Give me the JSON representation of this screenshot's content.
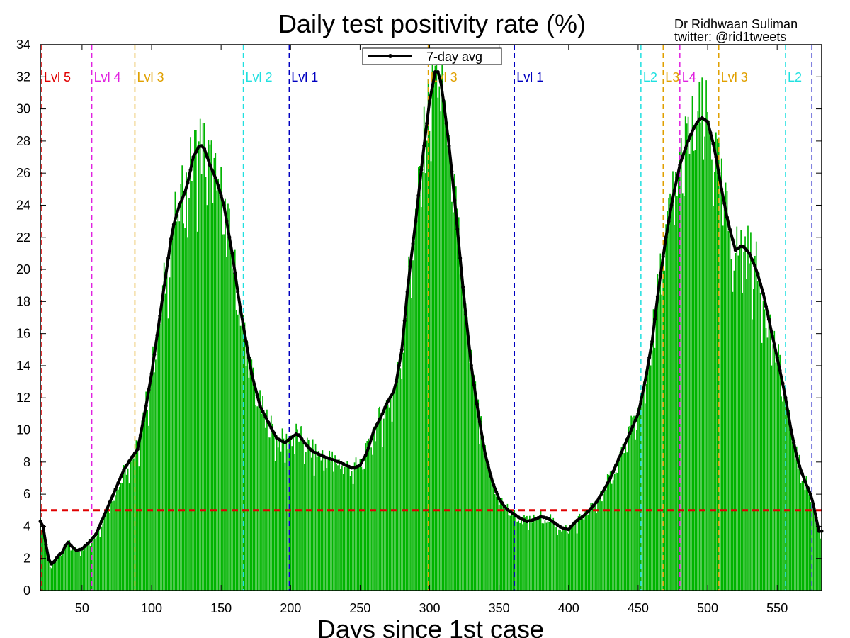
{
  "chart_data": {
    "type": "bar",
    "title": "Daily test positivity rate (%)",
    "credit": [
      "Dr Ridhwaan Suliman",
      "twitter: @rid1tweets"
    ],
    "xlabel": "Days since 1st case",
    "ylabel": "",
    "xlim": [
      20,
      582
    ],
    "ylim": [
      0,
      34
    ],
    "xticks": [
      50,
      100,
      150,
      200,
      250,
      300,
      350,
      400,
      450,
      500,
      550
    ],
    "yticks": [
      0,
      2,
      4,
      6,
      8,
      10,
      12,
      14,
      16,
      18,
      20,
      22,
      24,
      26,
      28,
      30,
      32,
      34
    ],
    "colors": {
      "bars": "#00b400",
      "bar_edge": "#228b22",
      "avg": "#000000",
      "threshold": "#e00000"
    },
    "bar_noise": 0.09,
    "threshold": {
      "y": 5
    },
    "legend": {
      "label": "7-day avg",
      "placement": "top-center"
    },
    "series": [
      {
        "name": "7-day avg",
        "x": [
          20,
          22,
          25,
          27,
          30,
          33,
          36,
          38,
          40,
          43,
          46,
          50,
          55,
          60,
          65,
          70,
          75,
          80,
          85,
          90,
          95,
          100,
          105,
          110,
          115,
          120,
          125,
          130,
          135,
          138,
          142,
          147,
          152,
          158,
          163,
          167,
          172,
          178,
          185,
          190,
          196,
          200,
          205,
          210,
          215,
          225,
          235,
          245,
          250,
          255,
          260,
          265,
          270,
          275,
          280,
          285,
          290,
          295,
          300,
          304,
          307,
          310,
          315,
          320,
          325,
          330,
          335,
          340,
          345,
          350,
          355,
          360,
          365,
          370,
          375,
          380,
          385,
          390,
          395,
          400,
          405,
          410,
          415,
          420,
          425,
          430,
          435,
          440,
          445,
          450,
          455,
          460,
          465,
          470,
          475,
          480,
          485,
          490,
          495,
          500,
          505,
          510,
          515,
          520,
          525,
          530,
          535,
          540,
          545,
          550,
          555,
          560,
          565,
          570,
          575,
          580
        ],
        "values": [
          4.3,
          4.0,
          2.3,
          1.6,
          1.8,
          2.2,
          2.4,
          2.8,
          3.0,
          2.7,
          2.5,
          2.6,
          3.0,
          3.5,
          4.5,
          5.5,
          6.5,
          7.5,
          8.2,
          8.8,
          11.0,
          13.5,
          16.5,
          19.5,
          22.5,
          24.0,
          25.0,
          27.0,
          27.8,
          27.5,
          26.5,
          25.5,
          24.0,
          21.0,
          18.0,
          16.0,
          13.5,
          11.5,
          10.3,
          9.5,
          9.2,
          9.5,
          9.8,
          9.2,
          8.7,
          8.3,
          8.0,
          7.6,
          7.8,
          8.6,
          10.0,
          10.8,
          11.8,
          12.5,
          15.0,
          19.5,
          23.0,
          27.0,
          30.5,
          32.3,
          32.3,
          30.5,
          27.0,
          22.5,
          18.0,
          14.0,
          11.0,
          8.5,
          6.8,
          5.7,
          5.1,
          4.8,
          4.5,
          4.3,
          4.4,
          4.6,
          4.5,
          4.2,
          3.9,
          3.8,
          4.3,
          4.6,
          5.0,
          5.5,
          6.2,
          7.0,
          8.0,
          9.0,
          10.0,
          11.0,
          13.0,
          15.5,
          19.0,
          22.0,
          24.5,
          26.5,
          27.8,
          28.8,
          29.5,
          29.2,
          27.5,
          25.0,
          22.8,
          21.2,
          21.5,
          21.0,
          20.0,
          18.5,
          16.5,
          14.5,
          12.5,
          10.0,
          8.0,
          6.8,
          5.8,
          3.7
        ]
      }
    ],
    "levels": [
      {
        "label": "Lvl 5",
        "x": 21,
        "color": "#e00000"
      },
      {
        "label": "Lvl 4",
        "x": 57,
        "color": "#e020e0"
      },
      {
        "label": "Lvl 3",
        "x": 88,
        "color": "#e0a000"
      },
      {
        "label": "Lvl 2",
        "x": 166,
        "color": "#20e0e0"
      },
      {
        "label": "Lvl 1",
        "x": 199,
        "color": "#0000c0"
      },
      {
        "label": "Lvl 3",
        "x": 299,
        "color": "#e0a000"
      },
      {
        "label": "Lvl 1",
        "x": 361,
        "color": "#0000c0"
      },
      {
        "label": "L2",
        "x": 452,
        "color": "#20e0e0"
      },
      {
        "label": "L3",
        "x": 468,
        "color": "#e0a000"
      },
      {
        "label": "L4",
        "x": 480,
        "color": "#e020e0"
      },
      {
        "label": "Lvl 3",
        "x": 508,
        "color": "#e0a000"
      },
      {
        "label": "L2",
        "x": 556,
        "color": "#20e0e0"
      },
      {
        "label": "",
        "x": 575,
        "color": "#0000c0"
      }
    ]
  }
}
